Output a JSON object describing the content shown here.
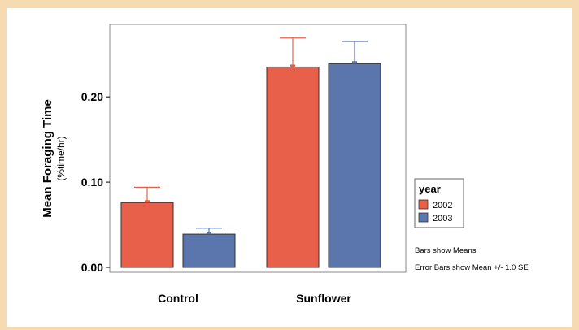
{
  "chart_data": {
    "type": "bar",
    "categories": [
      "Control",
      "Sunflower"
    ],
    "series": [
      {
        "name": "2002",
        "color": "#e8604a",
        "values": [
          0.076,
          0.235
        ],
        "se": [
          0.018,
          0.034
        ]
      },
      {
        "name": "2003",
        "color": "#5a76ad",
        "values": [
          0.039,
          0.239
        ],
        "se": [
          0.007,
          0.026
        ]
      }
    ],
    "ylabel": "Mean Foraging Time",
    "ylabel_sub": "(%time/hr)",
    "yticks": [
      "0.00",
      "0.10",
      "0.20"
    ],
    "ytick_values": [
      0.0,
      0.1,
      0.2
    ],
    "ylim": [
      0,
      0.285
    ],
    "legend_title": "year",
    "legend_position": "right",
    "notes": [
      "Bars show Means",
      "Error Bars show Mean +/- 1.0 SE"
    ],
    "grid": false
  }
}
